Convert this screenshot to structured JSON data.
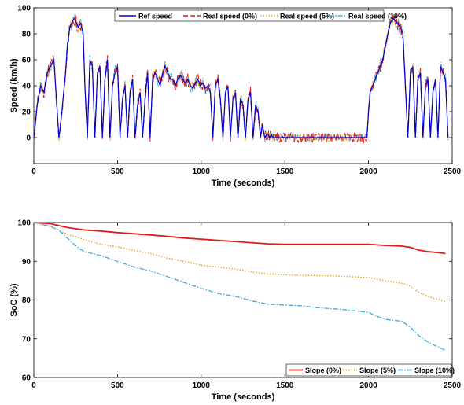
{
  "chart_data": [
    {
      "type": "line",
      "xlabel": "Time (seconds)",
      "ylabel": "Speed (km/h)",
      "xlim": [
        0,
        2500
      ],
      "ylim": [
        -20,
        100
      ],
      "xticks": [
        "0",
        "500",
        "1000",
        "1500",
        "2000",
        "2500"
      ],
      "yticks": [
        "100",
        "80",
        "60",
        "40",
        "20",
        "0"
      ],
      "legend_position": "top",
      "series": [
        {
          "name": "Ref speed",
          "color": "#0000cc",
          "style": "solid"
        },
        {
          "name": "Real speed (0%)",
          "color": "#e31a1c",
          "style": "dashed"
        },
        {
          "name": "Real speed (5%)",
          "color": "#e8a317",
          "style": "dotted"
        },
        {
          "name": "Real speed (10%)",
          "color": "#4ab0d9",
          "style": "dashdot"
        }
      ],
      "ref_profile": {
        "x": [
          0,
          20,
          40,
          60,
          80,
          100,
          120,
          135,
          150,
          160,
          175,
          190,
          200,
          215,
          225,
          240,
          250,
          265,
          280,
          295,
          305,
          320,
          335,
          350,
          365,
          380,
          395,
          410,
          425,
          440,
          455,
          470,
          485,
          500,
          515,
          530,
          545,
          560,
          575,
          590,
          605,
          620,
          635,
          650,
          665,
          680,
          695,
          710,
          725,
          740,
          755,
          770,
          785,
          800,
          815,
          830,
          845,
          860,
          875,
          890,
          905,
          920,
          935,
          950,
          965,
          980,
          995,
          1010,
          1025,
          1040,
          1055,
          1070,
          1085,
          1100,
          1115,
          1130,
          1145,
          1160,
          1175,
          1190,
          1205,
          1220,
          1235,
          1250,
          1265,
          1280,
          1295,
          1310,
          1325,
          1340,
          1355,
          1365,
          1380,
          1395,
          1410,
          1420,
          1430,
          1440,
          1455,
          1470,
          1500,
          1600,
          1700,
          1800,
          1900,
          1990,
          2000,
          2010,
          2025,
          2040,
          2055,
          2070,
          2085,
          2100,
          2115,
          2130,
          2145,
          2160,
          2175,
          2190,
          2205,
          2220,
          2235,
          2250,
          2265,
          2280,
          2295,
          2310,
          2325,
          2340,
          2355,
          2370,
          2385,
          2400,
          2415,
          2430,
          2445,
          2460,
          2475
        ],
        "y": [
          0,
          25,
          40,
          35,
          50,
          55,
          60,
          30,
          0,
          10,
          30,
          50,
          70,
          85,
          88,
          92,
          90,
          85,
          88,
          80,
          40,
          0,
          60,
          55,
          0,
          50,
          55,
          0,
          45,
          60,
          0,
          40,
          50,
          55,
          0,
          30,
          40,
          0,
          35,
          45,
          0,
          25,
          35,
          0,
          30,
          50,
          0,
          45,
          50,
          45,
          40,
          50,
          55,
          50,
          45,
          45,
          40,
          45,
          48,
          45,
          42,
          45,
          40,
          38,
          42,
          45,
          40,
          42,
          38,
          40,
          35,
          0,
          40,
          45,
          30,
          0,
          35,
          40,
          0,
          30,
          35,
          0,
          30,
          25,
          0,
          30,
          35,
          0,
          25,
          20,
          0,
          10,
          0,
          3,
          0,
          2,
          0,
          0,
          0,
          0,
          0,
          0,
          0,
          0,
          0,
          0,
          20,
          35,
          40,
          45,
          50,
          55,
          60,
          70,
          80,
          88,
          92,
          90,
          88,
          85,
          80,
          40,
          0,
          50,
          55,
          0,
          45,
          50,
          0,
          40,
          45,
          0,
          35,
          45,
          0,
          55,
          50,
          45,
          0
        ]
      }
    },
    {
      "type": "line",
      "xlabel": "Time (seconds)",
      "ylabel": "SoC (%)",
      "xlim": [
        0,
        2500
      ],
      "ylim": [
        60,
        100
      ],
      "xticks": [
        "0",
        "500",
        "1000",
        "1500",
        "2000",
        "2500"
      ],
      "yticks": [
        "100",
        "90",
        "80",
        "70",
        "60"
      ],
      "legend_position": "bottom-right",
      "series": [
        {
          "name": "Slope (0%)",
          "color": "#e31a1c",
          "style": "solid",
          "x": [
            0,
            100,
            200,
            300,
            400,
            500,
            600,
            700,
            800,
            900,
            1000,
            1100,
            1200,
            1300,
            1400,
            1500,
            1600,
            1700,
            1800,
            1900,
            2000,
            2100,
            2200,
            2250,
            2300,
            2350,
            2400,
            2460
          ],
          "y": [
            100,
            99.7,
            98.7,
            98.1,
            97.8,
            97.4,
            97.1,
            96.8,
            96.4,
            96.0,
            95.7,
            95.4,
            95.1,
            94.8,
            94.5,
            94.4,
            94.4,
            94.4,
            94.4,
            94.4,
            94.4,
            94.1,
            93.9,
            93.6,
            92.9,
            92.5,
            92.3,
            92.0
          ]
        },
        {
          "name": "Slope (5%)",
          "color": "#e8a317",
          "style": "dotted",
          "x": [
            0,
            100,
            150,
            200,
            250,
            300,
            400,
            500,
            600,
            700,
            800,
            900,
            1000,
            1100,
            1200,
            1300,
            1400,
            1500,
            1600,
            1700,
            1800,
            1900,
            2000,
            2100,
            2200,
            2250,
            2300,
            2350,
            2400,
            2460
          ],
          "y": [
            100,
            99.0,
            98.0,
            97.0,
            96.3,
            95.6,
            94.4,
            93.7,
            92.8,
            92.0,
            90.8,
            90.0,
            89.0,
            88.5,
            88.0,
            87.3,
            86.7,
            86.5,
            86.4,
            86.3,
            86.2,
            86.0,
            85.8,
            85.0,
            84.3,
            83.6,
            82.0,
            81.0,
            80.3,
            79.6
          ]
        },
        {
          "name": "Slope (10%)",
          "color": "#4ab0d9",
          "style": "dashdot",
          "x": [
            0,
            100,
            150,
            200,
            250,
            300,
            400,
            500,
            600,
            700,
            800,
            900,
            1000,
            1100,
            1200,
            1300,
            1400,
            1500,
            1600,
            1700,
            1800,
            1900,
            2000,
            2050,
            2100,
            2200,
            2250,
            2300,
            2350,
            2400,
            2460
          ],
          "y": [
            100,
            99.0,
            98.0,
            96.0,
            94.0,
            92.5,
            91.5,
            90.0,
            88.5,
            87.5,
            86.0,
            84.5,
            83.0,
            81.7,
            81.0,
            79.8,
            78.9,
            78.7,
            78.5,
            78.0,
            77.7,
            77.3,
            76.8,
            75.8,
            75.0,
            74.5,
            73.0,
            70.8,
            69.3,
            68.2,
            67.0
          ]
        }
      ]
    }
  ]
}
